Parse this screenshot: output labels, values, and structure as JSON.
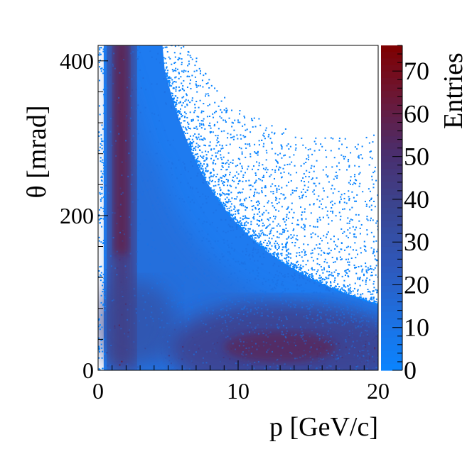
{
  "chart_data": {
    "type": "heatmap",
    "title": "",
    "xlabel": "p [GeV/c]",
    "ylabel": "θ [mrad]",
    "zlabel": "Entries",
    "xlim": [
      0,
      20
    ],
    "ylim": [
      0,
      420
    ],
    "zlim": [
      0,
      76
    ],
    "x_ticks": [
      0,
      10,
      20
    ],
    "y_ticks": [
      0,
      200,
      400
    ],
    "z_ticks": [
      0,
      10,
      20,
      30,
      40,
      50,
      60,
      70
    ],
    "grid": false,
    "legend": "colorbar-right",
    "colormap": [
      "#0a84ff",
      "#1e6fe0",
      "#2f57b8",
      "#3a4590",
      "#4a2e6e",
      "#6a1838",
      "#7f0000"
    ],
    "density_bands": [
      {
        "name": "low-momentum band",
        "p_center": 1.5,
        "theta_range": [
          0,
          420
        ],
        "peak_entries": 70
      },
      {
        "name": "high-momentum band",
        "p_range": [
          5,
          20
        ],
        "theta_center": 25,
        "peak_entries": 60
      }
    ]
  }
}
